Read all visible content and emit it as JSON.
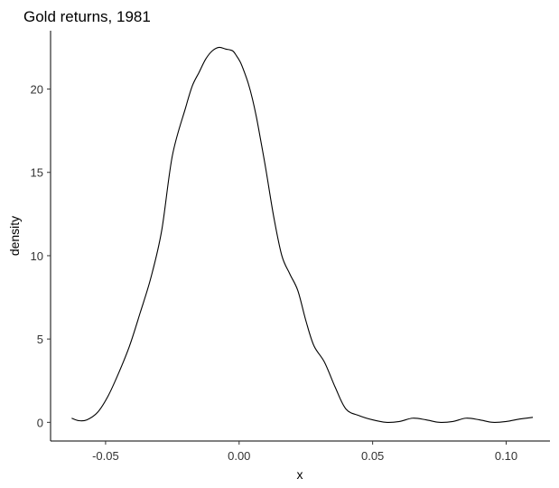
{
  "chart_data": {
    "type": "line",
    "title": "Gold returns, 1981",
    "xlabel": "x",
    "ylabel": "density",
    "xlim": [
      -0.0706,
      0.1164
    ],
    "ylim": [
      -1.12,
      23.5
    ],
    "x_ticks": [
      {
        "value": -0.05,
        "label": "-0.05"
      },
      {
        "value": 0.0,
        "label": "0.00"
      },
      {
        "value": 0.05,
        "label": "0.05"
      },
      {
        "value": 0.1,
        "label": "0.10"
      }
    ],
    "y_ticks": [
      {
        "value": 0,
        "label": "0"
      },
      {
        "value": 5,
        "label": "5"
      },
      {
        "value": 10,
        "label": "10"
      },
      {
        "value": 15,
        "label": "15"
      },
      {
        "value": 20,
        "label": "20"
      }
    ],
    "grid": false,
    "legend": "none",
    "series": [
      {
        "color": "#000000",
        "x": [
          -0.0627,
          -0.06,
          -0.057,
          -0.053,
          -0.049,
          -0.045,
          -0.041,
          -0.037,
          -0.033,
          -0.029,
          -0.025,
          -0.02,
          -0.0175,
          -0.015,
          -0.0125,
          -0.01,
          -0.0075,
          -0.005,
          -0.0025,
          -0.001,
          0.0005,
          0.002,
          0.0035,
          0.005,
          0.0065,
          0.008,
          0.01,
          0.013,
          0.016,
          0.019,
          0.022,
          0.025,
          0.028,
          0.032,
          0.036,
          0.04,
          0.045,
          0.05,
          0.055,
          0.06,
          0.065,
          0.07,
          0.075,
          0.08,
          0.085,
          0.09,
          0.095,
          0.1,
          0.105,
          0.11
        ],
        "y": [
          0.25,
          0.1,
          0.15,
          0.6,
          1.6,
          3.0,
          4.6,
          6.6,
          8.7,
          11.5,
          16.0,
          18.9,
          20.2,
          21.0,
          21.8,
          22.3,
          22.5,
          22.4,
          22.3,
          22.0,
          21.6,
          21.0,
          20.3,
          19.4,
          18.3,
          17.0,
          15.2,
          12.3,
          10.0,
          8.9,
          7.9,
          6.1,
          4.6,
          3.6,
          2.1,
          0.8,
          0.4,
          0.15,
          0.0,
          0.05,
          0.25,
          0.15,
          0.0,
          0.05,
          0.25,
          0.15,
          0.0,
          0.05,
          0.2,
          0.3
        ]
      }
    ]
  }
}
